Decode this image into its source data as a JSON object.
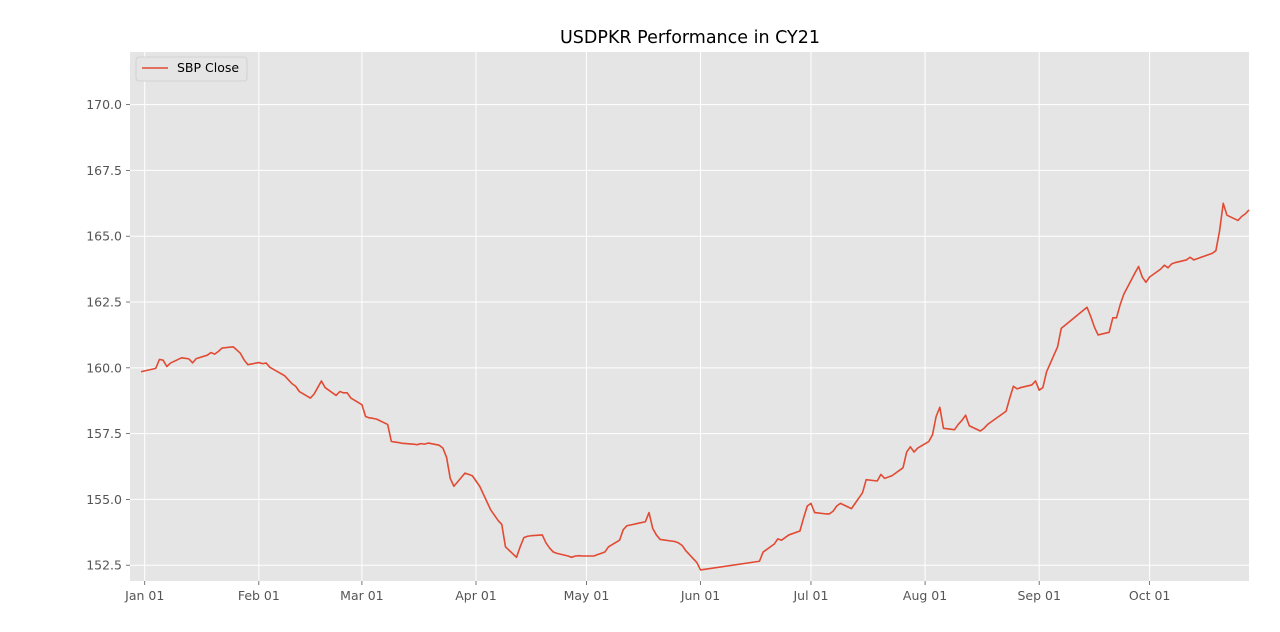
{
  "chart_data": {
    "type": "line",
    "title": "USDPKR Performance in CY21",
    "xlabel": "",
    "ylabel": "",
    "x_axis": "date",
    "xlim": [
      "2020-12-28",
      "2021-10-28"
    ],
    "ylim": [
      151.9,
      172.0
    ],
    "x_ticks": [
      {
        "date": "2021-01-01",
        "label": "Jan 01"
      },
      {
        "date": "2021-02-01",
        "label": "Feb 01"
      },
      {
        "date": "2021-03-01",
        "label": "Mar 01"
      },
      {
        "date": "2021-04-01",
        "label": "Apr 01"
      },
      {
        "date": "2021-05-01",
        "label": "May 01"
      },
      {
        "date": "2021-06-01",
        "label": "Jun 01"
      },
      {
        "date": "2021-07-01",
        "label": "Jul 01"
      },
      {
        "date": "2021-08-01",
        "label": "Aug 01"
      },
      {
        "date": "2021-09-01",
        "label": "Sep 01"
      },
      {
        "date": "2021-10-01",
        "label": "Oct 01"
      }
    ],
    "y_ticks": [
      {
        "value": 152.5,
        "label": "152.5"
      },
      {
        "value": 155.0,
        "label": "155.0"
      },
      {
        "value": 157.5,
        "label": "157.5"
      },
      {
        "value": 160.0,
        "label": "160.0"
      },
      {
        "value": 162.5,
        "label": "162.5"
      },
      {
        "value": 165.0,
        "label": "165.0"
      },
      {
        "value": 167.5,
        "label": "167.5"
      },
      {
        "value": 170.0,
        "label": "170.0"
      }
    ],
    "grid": true,
    "legend": {
      "position": "top-left",
      "entries": [
        "SBP Close"
      ]
    },
    "series": [
      {
        "name": "SBP Close",
        "color": "#e24a33",
        "points": [
          [
            "2020-12-31",
            159.85
          ],
          [
            "2021-01-04",
            159.98
          ],
          [
            "2021-01-05",
            160.32
          ],
          [
            "2021-01-06",
            160.29
          ],
          [
            "2021-01-07",
            160.05
          ],
          [
            "2021-01-08",
            160.18
          ],
          [
            "2021-01-11",
            160.38
          ],
          [
            "2021-01-12",
            160.36
          ],
          [
            "2021-01-13",
            160.34
          ],
          [
            "2021-01-14",
            160.19
          ],
          [
            "2021-01-15",
            160.35
          ],
          [
            "2021-01-18",
            160.48
          ],
          [
            "2021-01-19",
            160.58
          ],
          [
            "2021-01-20",
            160.52
          ],
          [
            "2021-01-21",
            160.62
          ],
          [
            "2021-01-22",
            160.75
          ],
          [
            "2021-01-25",
            160.8
          ],
          [
            "2021-01-26",
            160.68
          ],
          [
            "2021-01-27",
            160.55
          ],
          [
            "2021-01-28",
            160.3
          ],
          [
            "2021-01-29",
            160.12
          ],
          [
            "2021-02-01",
            160.2
          ],
          [
            "2021-02-02",
            160.16
          ],
          [
            "2021-02-03",
            160.18
          ],
          [
            "2021-02-04",
            160.02
          ],
          [
            "2021-02-08",
            159.7
          ],
          [
            "2021-02-09",
            159.55
          ],
          [
            "2021-02-10",
            159.4
          ],
          [
            "2021-02-11",
            159.3
          ],
          [
            "2021-02-12",
            159.1
          ],
          [
            "2021-02-15",
            158.85
          ],
          [
            "2021-02-16",
            159.0
          ],
          [
            "2021-02-17",
            159.25
          ],
          [
            "2021-02-18",
            159.5
          ],
          [
            "2021-02-19",
            159.25
          ],
          [
            "2021-02-22",
            158.95
          ],
          [
            "2021-02-23",
            159.1
          ],
          [
            "2021-02-24",
            159.05
          ],
          [
            "2021-02-25",
            159.05
          ],
          [
            "2021-02-26",
            158.85
          ],
          [
            "2021-03-01",
            158.6
          ],
          [
            "2021-03-02",
            158.15
          ],
          [
            "2021-03-03",
            158.1
          ],
          [
            "2021-03-04",
            158.08
          ],
          [
            "2021-03-05",
            158.05
          ],
          [
            "2021-03-08",
            157.85
          ],
          [
            "2021-03-09",
            157.2
          ],
          [
            "2021-03-10",
            157.18
          ],
          [
            "2021-03-11",
            157.16
          ],
          [
            "2021-03-12",
            157.13
          ],
          [
            "2021-03-15",
            157.1
          ],
          [
            "2021-03-16",
            157.08
          ],
          [
            "2021-03-17",
            157.12
          ],
          [
            "2021-03-18",
            157.1
          ],
          [
            "2021-03-19",
            157.14
          ],
          [
            "2021-03-22",
            157.06
          ],
          [
            "2021-03-23",
            156.95
          ],
          [
            "2021-03-24",
            156.6
          ],
          [
            "2021-03-25",
            155.8
          ],
          [
            "2021-03-26",
            155.5
          ],
          [
            "2021-03-29",
            156.0
          ],
          [
            "2021-03-30",
            155.95
          ],
          [
            "2021-03-31",
            155.9
          ],
          [
            "2021-04-01",
            155.7
          ],
          [
            "2021-04-02",
            155.5
          ],
          [
            "2021-04-05",
            154.6
          ],
          [
            "2021-04-06",
            154.4
          ],
          [
            "2021-04-07",
            154.2
          ],
          [
            "2021-04-08",
            154.05
          ],
          [
            "2021-04-09",
            153.2
          ],
          [
            "2021-04-12",
            152.8
          ],
          [
            "2021-04-13",
            153.2
          ],
          [
            "2021-04-14",
            153.55
          ],
          [
            "2021-04-15",
            153.6
          ],
          [
            "2021-04-16",
            153.62
          ],
          [
            "2021-04-19",
            153.65
          ],
          [
            "2021-04-20",
            153.35
          ],
          [
            "2021-04-21",
            153.15
          ],
          [
            "2021-04-22",
            153.0
          ],
          [
            "2021-04-23",
            152.95
          ],
          [
            "2021-04-26",
            152.85
          ],
          [
            "2021-04-27",
            152.8
          ],
          [
            "2021-04-28",
            152.85
          ],
          [
            "2021-04-29",
            152.86
          ],
          [
            "2021-04-30",
            152.85
          ],
          [
            "2021-05-03",
            152.85
          ],
          [
            "2021-05-04",
            152.9
          ],
          [
            "2021-05-05",
            152.95
          ],
          [
            "2021-05-06",
            153.0
          ],
          [
            "2021-05-07",
            153.2
          ],
          [
            "2021-05-10",
            153.45
          ],
          [
            "2021-05-11",
            153.85
          ],
          [
            "2021-05-12",
            154.0
          ],
          [
            "2021-05-17",
            154.15
          ],
          [
            "2021-05-18",
            154.5
          ],
          [
            "2021-05-19",
            153.9
          ],
          [
            "2021-05-20",
            153.65
          ],
          [
            "2021-05-21",
            153.48
          ],
          [
            "2021-05-24",
            153.42
          ],
          [
            "2021-05-25",
            153.4
          ],
          [
            "2021-05-26",
            153.35
          ],
          [
            "2021-05-27",
            153.25
          ],
          [
            "2021-05-28",
            153.05
          ],
          [
            "2021-05-31",
            152.6
          ],
          [
            "2021-06-01",
            152.32
          ],
          [
            "2021-06-17",
            152.65
          ],
          [
            "2021-06-18",
            153.0
          ],
          [
            "2021-06-21",
            153.3
          ],
          [
            "2021-06-22",
            153.5
          ],
          [
            "2021-06-23",
            153.45
          ],
          [
            "2021-06-24",
            153.55
          ],
          [
            "2021-06-25",
            153.65
          ],
          [
            "2021-06-28",
            153.8
          ],
          [
            "2021-06-29",
            154.3
          ],
          [
            "2021-06-30",
            154.75
          ],
          [
            "2021-07-01",
            154.85
          ],
          [
            "2021-07-02",
            154.5
          ],
          [
            "2021-07-05",
            154.45
          ],
          [
            "2021-07-06",
            154.45
          ],
          [
            "2021-07-07",
            154.55
          ],
          [
            "2021-07-08",
            154.75
          ],
          [
            "2021-07-09",
            154.85
          ],
          [
            "2021-07-12",
            154.65
          ],
          [
            "2021-07-13",
            154.85
          ],
          [
            "2021-07-14",
            155.05
          ],
          [
            "2021-07-15",
            155.25
          ],
          [
            "2021-07-16",
            155.75
          ],
          [
            "2021-07-19",
            155.7
          ],
          [
            "2021-07-20",
            155.95
          ],
          [
            "2021-07-21",
            155.8
          ],
          [
            "2021-07-23",
            155.9
          ],
          [
            "2021-07-26",
            156.2
          ],
          [
            "2021-07-27",
            156.8
          ],
          [
            "2021-07-28",
            157.0
          ],
          [
            "2021-07-29",
            156.8
          ],
          [
            "2021-07-30",
            156.95
          ],
          [
            "2021-08-02",
            157.2
          ],
          [
            "2021-08-03",
            157.45
          ],
          [
            "2021-08-04",
            158.15
          ],
          [
            "2021-08-05",
            158.5
          ],
          [
            "2021-08-06",
            157.7
          ],
          [
            "2021-08-09",
            157.65
          ],
          [
            "2021-08-10",
            157.85
          ],
          [
            "2021-08-11",
            158.0
          ],
          [
            "2021-08-12",
            158.2
          ],
          [
            "2021-08-13",
            157.8
          ],
          [
            "2021-08-16",
            157.6
          ],
          [
            "2021-08-17",
            157.7
          ],
          [
            "2021-08-18",
            157.85
          ],
          [
            "2021-08-19",
            157.95
          ],
          [
            "2021-08-20",
            158.05
          ],
          [
            "2021-08-23",
            158.35
          ],
          [
            "2021-08-24",
            158.85
          ],
          [
            "2021-08-25",
            159.3
          ],
          [
            "2021-08-26",
            159.2
          ],
          [
            "2021-08-27",
            159.25
          ],
          [
            "2021-08-30",
            159.35
          ],
          [
            "2021-08-31",
            159.5
          ],
          [
            "2021-09-01",
            159.15
          ],
          [
            "2021-09-02",
            159.25
          ],
          [
            "2021-09-03",
            159.85
          ],
          [
            "2021-09-06",
            160.8
          ],
          [
            "2021-09-07",
            161.5
          ],
          [
            "2021-09-14",
            162.3
          ],
          [
            "2021-09-15",
            161.95
          ],
          [
            "2021-09-16",
            161.55
          ],
          [
            "2021-09-17",
            161.25
          ],
          [
            "2021-09-20",
            161.35
          ],
          [
            "2021-09-21",
            161.9
          ],
          [
            "2021-09-22",
            161.9
          ],
          [
            "2021-09-23",
            162.4
          ],
          [
            "2021-09-24",
            162.8
          ],
          [
            "2021-09-27",
            163.6
          ],
          [
            "2021-09-28",
            163.85
          ],
          [
            "2021-09-29",
            163.45
          ],
          [
            "2021-09-30",
            163.25
          ],
          [
            "2021-10-01",
            163.45
          ],
          [
            "2021-10-04",
            163.75
          ],
          [
            "2021-10-05",
            163.9
          ],
          [
            "2021-10-06",
            163.8
          ],
          [
            "2021-10-07",
            163.95
          ],
          [
            "2021-10-08",
            164.0
          ],
          [
            "2021-10-11",
            164.1
          ],
          [
            "2021-10-12",
            164.2
          ],
          [
            "2021-10-13",
            164.1
          ],
          [
            "2021-10-14",
            164.15
          ],
          [
            "2021-10-15",
            164.2
          ],
          [
            "2021-10-18",
            164.35
          ],
          [
            "2021-10-19",
            164.45
          ],
          [
            "2021-10-20",
            165.2
          ],
          [
            "2021-10-21",
            166.25
          ],
          [
            "2021-10-22",
            165.8
          ],
          [
            "2021-10-25",
            165.6
          ],
          [
            "2021-10-26",
            165.75
          ],
          [
            "2021-10-27",
            165.85
          ],
          [
            "2021-10-28",
            166.0
          ]
        ]
      }
    ]
  }
}
